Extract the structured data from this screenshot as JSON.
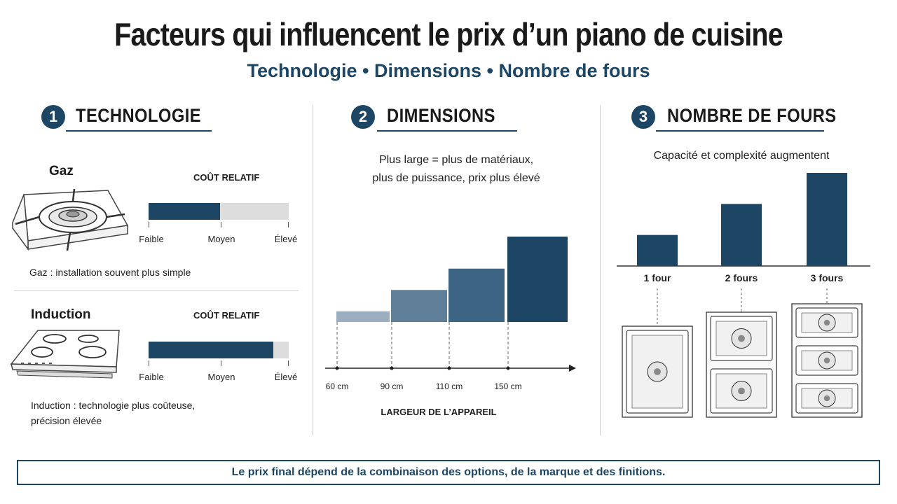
{
  "title": "Facteurs qui influencent le prix d’un piano de cuisine",
  "subtitle": "Technologie • Dimensions • Nombre de fours",
  "colors": {
    "accent": "#1d4664",
    "light_bar": "#dddddd"
  },
  "sections": {
    "technology": {
      "number": "1",
      "heading": "TECHNOLOGIE",
      "items": [
        {
          "name": "Gaz",
          "scale_title": "COÛT RELATIF",
          "relative_cost_fraction": 0.51,
          "ticks": [
            "Faible",
            "Moyen",
            "Élevé"
          ],
          "note_line1": "Gaz : installation souvent plus simple",
          "note_line2": "",
          "icon": "gas-burner-icon"
        },
        {
          "name": "Induction",
          "scale_title": "COÛT RELATIF",
          "relative_cost_fraction": 0.89,
          "ticks": [
            "Faible",
            "Moyen",
            "Élevé"
          ],
          "note_line1": "Induction : technologie plus coûteuse,",
          "note_line2": "précision élevée",
          "icon": "induction-cooktop-icon"
        }
      ]
    },
    "dimensions": {
      "number": "2",
      "heading": "DIMENSIONS",
      "description_line1": "Plus large = plus de matériaux,",
      "description_line2": "plus de puissance, prix plus élevé",
      "axis_label": "LARGEUR DE L’APPAREIL"
    },
    "ovens": {
      "number": "3",
      "heading": "NOMBRE DE FOURS",
      "description": "Capacité et complexité augmentent"
    }
  },
  "chart_data": [
    {
      "type": "bar",
      "categories": [
        "60 cm",
        "90 cm",
        "110 cm",
        "150 cm"
      ],
      "values": [
        1,
        3,
        5,
        8
      ],
      "colors": [
        "#9aaec0",
        "#5f7e98",
        "#3e6483",
        "#1d4664"
      ],
      "xlabel": "LARGEUR DE L’APPAREIL",
      "ylabel": "",
      "grid": false
    },
    {
      "type": "bar",
      "categories": [
        "1 four",
        "2 fours",
        "3 fours"
      ],
      "values": [
        1,
        2,
        3
      ],
      "colors": [
        "#1d4664",
        "#1d4664",
        "#1d4664"
      ],
      "xlabel": "",
      "ylabel": "",
      "grid": false
    }
  ],
  "footer": "Le prix final dépend de la combinaison des options, de la marque et des finitions."
}
